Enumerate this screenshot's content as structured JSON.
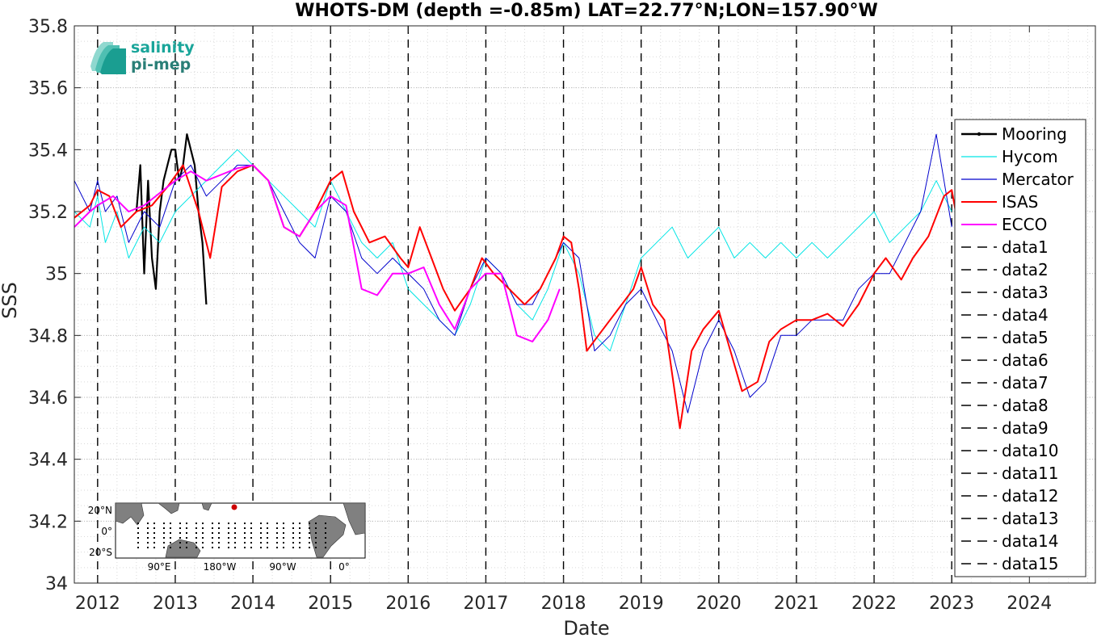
{
  "chart_data": {
    "type": "line",
    "title": "WHOTS-DM (depth =-0.85m) LAT=22.77°N;LON=157.90°W",
    "xlabel": "Date",
    "ylabel": "SSS",
    "xlim": [
      2011.7,
      2024.85
    ],
    "ylim": [
      34.0,
      35.8
    ],
    "x_ticks": [
      "2012",
      "2013",
      "2014",
      "2015",
      "2016",
      "2017",
      "2018",
      "2019",
      "2020",
      "2021",
      "2022",
      "2023",
      "2024"
    ],
    "y_ticks": [
      "34",
      "34.2",
      "34.4",
      "34.6",
      "34.8",
      "35",
      "35.2",
      "35.4",
      "35.6",
      "35.8"
    ],
    "grid": true,
    "legend_position": "right",
    "vertical_dashed_lines": [
      2012.0,
      2013.0,
      2014.0,
      2015.0,
      2016.0,
      2017.0,
      2018.0,
      2019.0,
      2020.0,
      2021.0,
      2022.0,
      2023.0
    ],
    "series": [
      {
        "name": "Mooring",
        "color": "#000000",
        "x": [
          2012.5,
          2012.55,
          2012.6,
          2012.65,
          2012.7,
          2012.75,
          2012.8,
          2012.85,
          2012.9,
          2012.95,
          2013.0,
          2013.05,
          2013.1,
          2013.15,
          2013.2,
          2013.25,
          2013.3,
          2013.35,
          2013.4
        ],
        "y": [
          35.2,
          35.35,
          35.0,
          35.3,
          35.05,
          34.95,
          35.2,
          35.3,
          35.35,
          35.4,
          35.4,
          35.3,
          35.35,
          35.45,
          35.4,
          35.35,
          35.2,
          35.1,
          34.9
        ]
      },
      {
        "name": "Hycom",
        "color": "#00e5e5",
        "x": [
          2011.7,
          2011.9,
          2012.0,
          2012.1,
          2012.25,
          2012.4,
          2012.6,
          2012.8,
          2013.0,
          2013.2,
          2013.4,
          2013.6,
          2013.8,
          2014.0,
          2014.2,
          2014.4,
          2014.6,
          2014.8,
          2015.0,
          2015.2,
          2015.4,
          2015.6,
          2015.8,
          2016.0,
          2016.2,
          2016.4,
          2016.6,
          2016.8,
          2017.0,
          2017.2,
          2017.4,
          2017.6,
          2017.8,
          2018.0,
          2018.2,
          2018.4,
          2018.6,
          2018.8,
          2019.0,
          2019.2,
          2019.4,
          2019.6,
          2019.8,
          2020.0,
          2020.2,
          2020.4,
          2020.6,
          2020.8,
          2021.0,
          2021.2,
          2021.4,
          2021.6,
          2021.8,
          2022.0,
          2022.2,
          2022.4,
          2022.6,
          2022.8,
          2023.0
        ],
        "y": [
          35.2,
          35.15,
          35.25,
          35.1,
          35.2,
          35.05,
          35.15,
          35.1,
          35.2,
          35.25,
          35.3,
          35.35,
          35.4,
          35.35,
          35.3,
          35.25,
          35.2,
          35.15,
          35.3,
          35.2,
          35.1,
          35.05,
          35.1,
          34.95,
          34.9,
          34.85,
          34.8,
          34.9,
          35.05,
          35.0,
          34.9,
          34.85,
          34.95,
          35.1,
          35.0,
          34.8,
          34.75,
          34.9,
          35.05,
          35.1,
          35.15,
          35.05,
          35.1,
          35.15,
          35.05,
          35.1,
          35.05,
          35.1,
          35.05,
          35.1,
          35.05,
          35.1,
          35.15,
          35.2,
          35.1,
          35.15,
          35.2,
          35.3,
          35.2
        ]
      },
      {
        "name": "Mercator",
        "color": "#0000cc",
        "x": [
          2011.7,
          2011.9,
          2012.0,
          2012.1,
          2012.25,
          2012.4,
          2012.6,
          2012.8,
          2013.0,
          2013.2,
          2013.4,
          2013.6,
          2013.8,
          2014.0,
          2014.2,
          2014.4,
          2014.6,
          2014.8,
          2015.0,
          2015.2,
          2015.4,
          2015.6,
          2015.8,
          2016.0,
          2016.2,
          2016.4,
          2016.6,
          2016.8,
          2017.0,
          2017.2,
          2017.4,
          2017.6,
          2017.8,
          2018.0,
          2018.2,
          2018.4,
          2018.6,
          2018.8,
          2019.0,
          2019.2,
          2019.4,
          2019.6,
          2019.8,
          2020.0,
          2020.2,
          2020.4,
          2020.6,
          2020.8,
          2021.0,
          2021.2,
          2021.4,
          2021.6,
          2021.8,
          2022.0,
          2022.2,
          2022.4,
          2022.6,
          2022.8,
          2023.0
        ],
        "y": [
          35.3,
          35.2,
          35.3,
          35.2,
          35.25,
          35.1,
          35.2,
          35.15,
          35.3,
          35.35,
          35.25,
          35.3,
          35.35,
          35.35,
          35.3,
          35.2,
          35.1,
          35.05,
          35.25,
          35.2,
          35.05,
          35.0,
          35.05,
          35.0,
          34.95,
          34.85,
          34.8,
          34.95,
          35.05,
          35.0,
          34.9,
          34.9,
          35.0,
          35.1,
          35.05,
          34.75,
          34.8,
          34.9,
          34.95,
          34.85,
          34.75,
          34.55,
          34.75,
          34.85,
          34.75,
          34.6,
          34.65,
          34.8,
          34.8,
          34.85,
          34.85,
          34.85,
          34.95,
          35.0,
          35.0,
          35.1,
          35.2,
          35.45,
          35.15
        ]
      },
      {
        "name": "ISAS",
        "color": "#ff0000",
        "x": [
          2011.7,
          2011.9,
          2012.0,
          2012.15,
          2012.3,
          2012.5,
          2012.7,
          2012.9,
          2013.1,
          2013.3,
          2013.45,
          2013.6,
          2013.8,
          2014.0,
          2014.2,
          2014.4,
          2014.6,
          2014.8,
          2015.0,
          2015.15,
          2015.3,
          2015.5,
          2015.7,
          2015.9,
          2016.0,
          2016.15,
          2016.3,
          2016.45,
          2016.6,
          2016.8,
          2016.95,
          2017.1,
          2017.3,
          2017.5,
          2017.7,
          2017.9,
          2018.0,
          2018.1,
          2018.2,
          2018.3,
          2018.45,
          2018.6,
          2018.75,
          2018.9,
          2019.0,
          2019.15,
          2019.3,
          2019.5,
          2019.65,
          2019.8,
          2020.0,
          2020.15,
          2020.3,
          2020.5,
          2020.65,
          2020.8,
          2021.0,
          2021.2,
          2021.4,
          2021.6,
          2021.8,
          2022.0,
          2022.15,
          2022.35,
          2022.5,
          2022.7,
          2022.9,
          2023.0,
          2023.05
        ],
        "y": [
          35.18,
          35.22,
          35.27,
          35.25,
          35.15,
          35.2,
          35.22,
          35.28,
          35.35,
          35.2,
          35.05,
          35.28,
          35.33,
          35.35,
          35.3,
          35.15,
          35.12,
          35.2,
          35.3,
          35.33,
          35.2,
          35.1,
          35.12,
          35.05,
          35.02,
          35.15,
          35.05,
          34.95,
          34.88,
          34.95,
          35.05,
          35.0,
          34.95,
          34.9,
          34.95,
          35.05,
          35.12,
          35.1,
          34.95,
          34.75,
          34.8,
          34.85,
          34.9,
          34.95,
          35.02,
          34.9,
          34.85,
          34.5,
          34.75,
          34.82,
          34.88,
          34.75,
          34.62,
          34.65,
          34.78,
          34.82,
          34.85,
          34.85,
          34.87,
          34.83,
          34.9,
          35.0,
          35.05,
          34.98,
          35.05,
          35.12,
          35.25,
          35.27,
          35.2
        ]
      },
      {
        "name": "ECCO",
        "color": "#ff00ff",
        "x": [
          2011.7,
          2011.9,
          2012.0,
          2012.2,
          2012.4,
          2012.6,
          2012.8,
          2013.0,
          2013.2,
          2013.4,
          2013.6,
          2013.8,
          2014.0,
          2014.2,
          2014.4,
          2014.6,
          2014.8,
          2015.0,
          2015.2,
          2015.4,
          2015.6,
          2015.8,
          2016.0,
          2016.2,
          2016.4,
          2016.6,
          2016.8,
          2017.0,
          2017.2,
          2017.4,
          2017.6,
          2017.8,
          2017.95
        ],
        "y": [
          35.15,
          35.2,
          35.22,
          35.25,
          35.2,
          35.22,
          35.26,
          35.3,
          35.33,
          35.3,
          35.32,
          35.34,
          35.35,
          35.3,
          35.15,
          35.12,
          35.2,
          35.25,
          35.22,
          34.95,
          34.93,
          35.0,
          35.0,
          35.02,
          34.9,
          34.82,
          34.95,
          35.0,
          35.0,
          34.8,
          34.78,
          34.85,
          34.95
        ]
      }
    ],
    "legend_entries": [
      "Mooring",
      "Hycom",
      "Mercator",
      "ISAS",
      "ECCO",
      "data1",
      "data2",
      "data3",
      "data4",
      "data5",
      "data6",
      "data7",
      "data8",
      "data9",
      "data10",
      "data11",
      "data12",
      "data13",
      "data14",
      "data15"
    ]
  },
  "logo": {
    "line1": "salinity",
    "line2": "pi-mep"
  },
  "inset_map": {
    "lat_labels": [
      "20°N",
      "0°",
      "20°S"
    ],
    "lon_labels": [
      "90°E",
      "180°W",
      "90°W",
      "0°"
    ],
    "land_color": "#808080",
    "marker_color": "#cc0000"
  }
}
